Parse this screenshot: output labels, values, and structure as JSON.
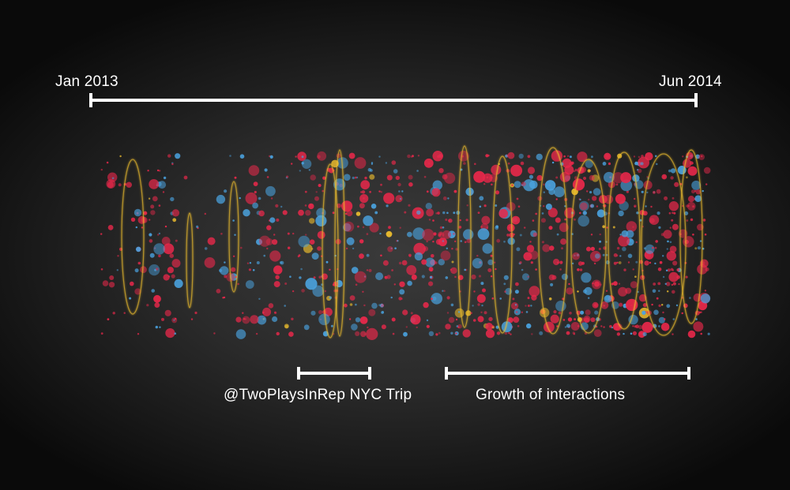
{
  "timeline": {
    "start_label": "Jan 2013",
    "end_label": "Jun 2014",
    "start": "2013-01",
    "end": "2014-06"
  },
  "annotations": [
    {
      "label": "@TwoPlaysInRep NYC Trip",
      "start": "2013-08",
      "end": "2013-10"
    },
    {
      "label": "Growth of interactions",
      "start": "2013-11",
      "end": "2014-06"
    }
  ],
  "colors": {
    "background": "#2b2b2b",
    "bracket": "#ffffff",
    "red": "#e8284a",
    "blue": "#4aa3e0",
    "yellow": "#f2c12e"
  },
  "chart_data": {
    "type": "scatter",
    "x_axis": "time",
    "xlim": [
      "2013-01",
      "2014-06"
    ],
    "legend": "none",
    "grid": false,
    "series": [
      {
        "color": "red",
        "points": "many"
      },
      {
        "color": "blue",
        "points": "many"
      },
      {
        "color": "yellow",
        "points": "few"
      }
    ]
  }
}
